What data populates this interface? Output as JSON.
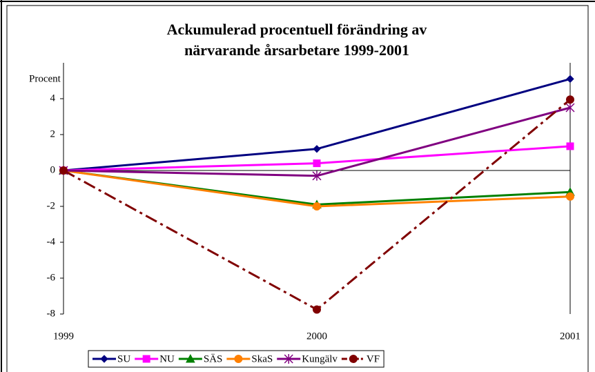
{
  "chart_data": {
    "type": "line",
    "title": [
      "Ackumulerad procentuell förändring av",
      "närvarande årsarbetare 1999-2001"
    ],
    "y_label": "Procent",
    "categories": [
      "1999",
      "2000",
      "2001"
    ],
    "series": [
      {
        "name": "SU",
        "color": "#000080",
        "marker": "diamond",
        "dash": false,
        "values": [
          0,
          1.2,
          5.1
        ]
      },
      {
        "name": "NU",
        "color": "#ff00ff",
        "marker": "square",
        "dash": false,
        "values": [
          0,
          0.4,
          1.35
        ]
      },
      {
        "name": "SÄS",
        "color": "#008000",
        "marker": "triangle",
        "dash": false,
        "values": [
          0,
          -1.9,
          -1.2
        ]
      },
      {
        "name": "SkaS",
        "color": "#ff8000",
        "marker": "circle",
        "dash": false,
        "values": [
          0,
          -2.0,
          -1.45
        ]
      },
      {
        "name": "Kungälv",
        "color": "#800080",
        "marker": "star",
        "dash": false,
        "values": [
          0,
          -0.3,
          3.5
        ]
      },
      {
        "name": "VF",
        "color": "#800000",
        "marker": "circle",
        "dash": true,
        "values": [
          0,
          -7.75,
          3.95
        ]
      }
    ],
    "ylim": [
      -8,
      6
    ],
    "yticks": [
      -8,
      -6,
      -4,
      -2,
      0,
      2,
      4
    ],
    "grid": false,
    "legend": "bottom"
  }
}
